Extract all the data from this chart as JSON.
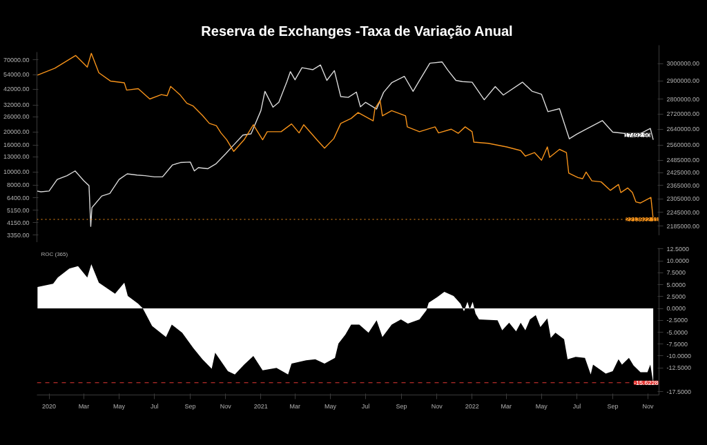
{
  "chart_data": [
    {
      "type": "line",
      "title": "Reserva de Exchanges -Taxa de Variação Anual",
      "xlim": [
        "2019-12-11",
        "2022-11-20"
      ],
      "ylim": [
        2950,
        80000
      ],
      "yticks": [
        {
          "value": 3350,
          "label": "3350.00"
        },
        {
          "value": 4150,
          "label": "4150.00"
        },
        {
          "value": 5150,
          "label": "5150.00"
        },
        {
          "value": 6400,
          "label": "6400.00"
        },
        {
          "value": 8000,
          "label": "8000.00"
        },
        {
          "value": 10000,
          "label": "10000.00"
        },
        {
          "value": 13000,
          "label": "13000.00"
        },
        {
          "value": 16000,
          "label": "16000.00"
        },
        {
          "value": 20000,
          "label": "20000.00"
        },
        {
          "value": 26000,
          "label": "26000.00"
        },
        {
          "value": 32000,
          "label": "32000.00"
        },
        {
          "value": 42000,
          "label": "42000.00"
        },
        {
          "value": 54000,
          "label": "54000.00"
        },
        {
          "value": 70000,
          "label": "70000.00"
        }
      ],
      "log": "y",
      "tick_labels": "y",
      "series": [
        {
          "color": "#d9d9d9",
          "x": [
            "2019-12-11",
            "2019-12-18",
            "2020-01-01",
            "2020-01-15",
            "2020-02-01",
            "2020-02-15",
            "2020-03-01",
            "2020-03-10",
            "2020-03-13",
            "2020-03-15",
            "2020-04-01",
            "2020-04-15",
            "2020-05-01",
            "2020-05-15",
            "2020-06-01",
            "2020-06-15",
            "2020-07-01",
            "2020-07-15",
            "2020-08-01",
            "2020-08-15",
            "2020-09-01",
            "2020-09-08",
            "2020-09-15",
            "2020-10-01",
            "2020-10-15",
            "2020-11-01",
            "2020-11-15",
            "2020-12-01",
            "2020-12-15",
            "2021-01-01",
            "2021-01-08",
            "2021-01-22",
            "2021-02-01",
            "2021-02-15",
            "2021-02-21",
            "2021-03-01",
            "2021-03-13",
            "2021-04-01",
            "2021-04-14",
            "2021-04-25",
            "2021-05-08",
            "2021-05-19",
            "2021-06-01",
            "2021-06-15",
            "2021-06-22",
            "2021-07-01",
            "2021-07-20",
            "2021-08-01",
            "2021-08-15",
            "2021-09-06",
            "2021-09-21",
            "2021-10-01",
            "2021-10-20",
            "2021-11-10",
            "2021-11-20",
            "2021-12-04",
            "2021-12-15",
            "2022-01-01",
            "2022-01-22",
            "2022-02-10",
            "2022-02-24",
            "2022-03-29",
            "2022-04-15",
            "2022-05-01",
            "2022-05-12",
            "2022-06-01",
            "2022-06-18",
            "2022-07-01",
            "2022-07-15",
            "2022-08-14",
            "2022-09-01",
            "2022-09-15",
            "2022-10-01",
            "2022-10-15",
            "2022-11-05",
            "2022-11-10"
          ],
          "values": [
            7200,
            7100,
            7200,
            8800,
            9400,
            10200,
            8600,
            7900,
            3900,
            5400,
            6600,
            6900,
            8800,
            9700,
            9500,
            9400,
            9200,
            9200,
            11300,
            11800,
            11900,
            10200,
            10800,
            10600,
            11500,
            13700,
            16000,
            19000,
            19400,
            29000,
            40500,
            30800,
            33500,
            48000,
            57000,
            49500,
            61000,
            59000,
            64000,
            49000,
            58000,
            37000,
            36500,
            40000,
            31000,
            33500,
            29800,
            39800,
            47000,
            52500,
            40500,
            48000,
            66000,
            67500,
            58500,
            49000,
            48000,
            47500,
            35000,
            44000,
            38000,
            47500,
            40500,
            38500,
            28500,
            30000,
            17800,
            19300,
            20800,
            24400,
            20000,
            19700,
            19300,
            19100,
            21300,
            17492.9
          ]
        }
      ],
      "annotations": [
        {
          "text": "17492.90",
          "x": "2022-11-10",
          "y": 17492.9
        }
      ]
    },
    {
      "type": "line",
      "xlim": [
        "2019-12-11",
        "2022-11-20"
      ],
      "y2lim": [
        2145000,
        3110000
      ],
      "y2ticks": [
        {
          "value": 2185000,
          "label": "2185000.00"
        },
        {
          "value": 2245000,
          "label": "2245000.00"
        },
        {
          "value": 2305000,
          "label": "2305000.00"
        },
        {
          "value": 2365000,
          "label": "2365000.00"
        },
        {
          "value": 2425000,
          "label": "2425000.00"
        },
        {
          "value": 2485000,
          "label": "2485000.00"
        },
        {
          "value": 2560000,
          "label": "2560000.00"
        },
        {
          "value": 2640000,
          "label": "2640000.00"
        },
        {
          "value": 2720000,
          "label": "2720000.00"
        },
        {
          "value": 2800000,
          "label": "2800000.00"
        },
        {
          "value": 2900000,
          "label": "2900000.00"
        },
        {
          "value": 3000000,
          "label": "3000000.00"
        }
      ],
      "log": "y2",
      "tick_labels": "y",
      "series": [
        {
          "color": "#f7931a",
          "axis": "y2",
          "x": [
            "2019-12-12",
            "2020-01-11",
            "2020-02-16",
            "2020-03-07",
            "2020-03-14",
            "2020-03-27",
            "2020-04-16",
            "2020-05-10",
            "2020-05-14",
            "2020-06-03",
            "2020-06-23",
            "2020-07-13",
            "2020-07-23",
            "2020-07-29",
            "2020-08-14",
            "2020-08-26",
            "2020-09-06",
            "2020-09-22",
            "2020-10-04",
            "2020-10-16",
            "2020-10-24",
            "2020-11-03",
            "2020-11-15",
            "2020-12-03",
            "2020-12-19",
            "2021-01-04",
            "2021-01-12",
            "2021-02-05",
            "2021-02-23",
            "2021-03-08",
            "2021-03-16",
            "2021-04-09",
            "2021-04-21",
            "2021-05-07",
            "2021-05-19",
            "2021-06-06",
            "2021-06-18",
            "2021-07-14",
            "2021-07-17",
            "2021-07-26",
            "2021-07-30",
            "2021-08-15",
            "2021-09-08",
            "2021-09-11",
            "2021-10-02",
            "2021-10-29",
            "2021-11-04",
            "2021-11-26",
            "2021-12-08",
            "2021-12-20",
            "2022-01-01",
            "2022-01-04",
            "2022-01-29",
            "2022-03-02",
            "2022-03-26",
            "2022-04-03",
            "2022-04-19",
            "2022-05-01",
            "2022-05-11",
            "2022-05-15",
            "2022-06-01",
            "2022-06-13",
            "2022-06-17",
            "2022-07-03",
            "2022-07-11",
            "2022-07-17",
            "2022-07-27",
            "2022-08-12",
            "2022-08-28",
            "2022-09-11",
            "2022-09-15",
            "2022-09-27",
            "2022-10-05",
            "2022-10-11",
            "2022-10-19",
            "2022-11-06",
            "2022-11-10"
          ],
          "values": [
            2934000,
            2973000,
            3048000,
            2980000,
            3061000,
            2947000,
            2900000,
            2890000,
            2849000,
            2857000,
            2800000,
            2824000,
            2818000,
            2870000,
            2824000,
            2777000,
            2762000,
            2712000,
            2670000,
            2658000,
            2621000,
            2586000,
            2528000,
            2586000,
            2663000,
            2586000,
            2627000,
            2627000,
            2667000,
            2621000,
            2663000,
            2582000,
            2544000,
            2592000,
            2670000,
            2696000,
            2727000,
            2683000,
            2747000,
            2792000,
            2710000,
            2737000,
            2710000,
            2652000,
            2627000,
            2652000,
            2621000,
            2640000,
            2619000,
            2652000,
            2627000,
            2574000,
            2568000,
            2550000,
            2532000,
            2505000,
            2522000,
            2485000,
            2550000,
            2499000,
            2538000,
            2522000,
            2423000,
            2402000,
            2397000,
            2428000,
            2387000,
            2382000,
            2343000,
            2370000,
            2333000,
            2354000,
            2333000,
            2291000,
            2286000,
            2311000,
            2213922.11
          ]
        }
      ],
      "ref_lines": [
        {
          "axis": "y2",
          "value": 2213922.11,
          "label": "2213922.11",
          "color": "#f7931a",
          "line_style": "dotted"
        }
      ]
    },
    {
      "type": "area",
      "xlim": [
        "2019-12-11",
        "2022-11-20"
      ],
      "xticks": [
        {
          "value": "2020-01-01",
          "label": "2020"
        },
        {
          "value": "2020-03-01",
          "label": "Mar"
        },
        {
          "value": "2020-05-01",
          "label": "May"
        },
        {
          "value": "2020-07-01",
          "label": "Jul"
        },
        {
          "value": "2020-09-01",
          "label": "Sep"
        },
        {
          "value": "2020-11-01",
          "label": "Nov"
        },
        {
          "value": "2021-01-01",
          "label": "2021"
        },
        {
          "value": "2021-03-01",
          "label": "Mar"
        },
        {
          "value": "2021-05-01",
          "label": "May"
        },
        {
          "value": "2021-07-01",
          "label": "Jul"
        },
        {
          "value": "2021-09-01",
          "label": "Sep"
        },
        {
          "value": "2021-11-01",
          "label": "Nov"
        },
        {
          "value": "2022-01-01",
          "label": "2022"
        },
        {
          "value": "2022-03-01",
          "label": "Mar"
        },
        {
          "value": "2022-05-01",
          "label": "May"
        },
        {
          "value": "2022-07-01",
          "label": "Jul"
        },
        {
          "value": "2022-09-01",
          "label": "Sep"
        },
        {
          "value": "2022-11-01",
          "label": "Nov"
        }
      ],
      "y2lim": [
        -18.2,
        12.7
      ],
      "y2ticks": [
        {
          "value": 12.5,
          "label": "12.5000"
        },
        {
          "value": 10,
          "label": "10.0000"
        },
        {
          "value": 7.5,
          "label": "7.5000"
        },
        {
          "value": 5,
          "label": "5.0000"
        },
        {
          "value": 2.5,
          "label": "2.5000"
        },
        {
          "value": 0,
          "label": "0.0000"
        },
        {
          "value": -2.5,
          "label": "-2.5000"
        },
        {
          "value": -5,
          "label": "-5.0000"
        },
        {
          "value": -7.5,
          "label": "-7.5000"
        },
        {
          "value": -10,
          "label": "-10.0000"
        },
        {
          "value": -12.5,
          "label": "-12.5000"
        },
        {
          "value": -17.5,
          "label": "-17.5000"
        }
      ],
      "series": [
        {
          "color": "#ffffff",
          "axis": "y2",
          "x": [
            "2019-12-12",
            "2020-01-08",
            "2020-01-16",
            "2020-02-05",
            "2020-02-20",
            "2020-03-07",
            "2020-03-14",
            "2020-03-27",
            "2020-04-24",
            "2020-05-10",
            "2020-05-16",
            "2020-06-03",
            "2020-06-11",
            "2020-06-27",
            "2020-07-21",
            "2020-07-31",
            "2020-08-18",
            "2020-09-06",
            "2020-09-22",
            "2020-10-08",
            "2020-10-14",
            "2020-11-05",
            "2020-11-17",
            "2020-12-03",
            "2020-12-19",
            "2021-01-04",
            "2021-01-28",
            "2021-02-17",
            "2021-02-23",
            "2021-03-20",
            "2021-04-05",
            "2021-04-21",
            "2021-05-09",
            "2021-05-15",
            "2021-05-27",
            "2021-06-06",
            "2021-06-20",
            "2021-07-06",
            "2021-07-20",
            "2021-07-30",
            "2021-08-15",
            "2021-08-31",
            "2021-09-12",
            "2021-10-02",
            "2021-10-14",
            "2021-10-18",
            "2021-11-02",
            "2021-11-14",
            "2021-11-30",
            "2021-12-12",
            "2021-12-18",
            "2021-12-24",
            "2021-12-28",
            "2022-01-02",
            "2022-01-07",
            "2022-01-13",
            "2022-02-14",
            "2022-02-22",
            "2022-03-06",
            "2022-03-18",
            "2022-03-26",
            "2022-04-03",
            "2022-04-11",
            "2022-04-21",
            "2022-04-29",
            "2022-05-11",
            "2022-05-17",
            "2022-05-25",
            "2022-06-09",
            "2022-06-15",
            "2022-06-29",
            "2022-07-15",
            "2022-07-25",
            "2022-07-29",
            "2022-08-20",
            "2022-09-01",
            "2022-09-11",
            "2022-09-17",
            "2022-09-29",
            "2022-10-07",
            "2022-10-19",
            "2022-10-31",
            "2022-11-05",
            "2022-11-10"
          ],
          "values": [
            4.5,
            5.2,
            6.5,
            8.4,
            8.9,
            6.5,
            9.3,
            5.4,
            3.1,
            5.4,
            2.6,
            1.0,
            0,
            -3.7,
            -6.0,
            -3.4,
            -5.1,
            -8.3,
            -10.7,
            -12.7,
            -9.3,
            -13.2,
            -13.9,
            -11.8,
            -10.0,
            -13.0,
            -12.5,
            -13.9,
            -11.6,
            -10.9,
            -10.7,
            -11.6,
            -10.4,
            -7.4,
            -5.5,
            -3.4,
            -3.4,
            -5.1,
            -2.5,
            -6.0,
            -3.4,
            -2.3,
            -3.2,
            -2.3,
            -0.4,
            1.2,
            2.4,
            3.5,
            2.6,
            1.0,
            -0.6,
            1.4,
            -0.2,
            1.4,
            -1.1,
            -2.3,
            -2.5,
            -4.6,
            -3.0,
            -4.8,
            -3.0,
            -4.6,
            -2.3,
            -1.4,
            -3.9,
            -2.1,
            -6.2,
            -5.1,
            -6.5,
            -10.7,
            -10.2,
            -10.4,
            -13.9,
            -11.8,
            -13.7,
            -13.2,
            -10.7,
            -11.8,
            -10.4,
            -12.0,
            -13.4,
            -13.4,
            -11.8,
            -15.6228
          ]
        }
      ],
      "ref_lines": [
        {
          "axis": "y2",
          "value": -15.6228,
          "label": "-15.6228",
          "color": "#e53935",
          "line_style": "dashed"
        }
      ],
      "annotations": [
        "ROC (365)"
      ]
    }
  ]
}
